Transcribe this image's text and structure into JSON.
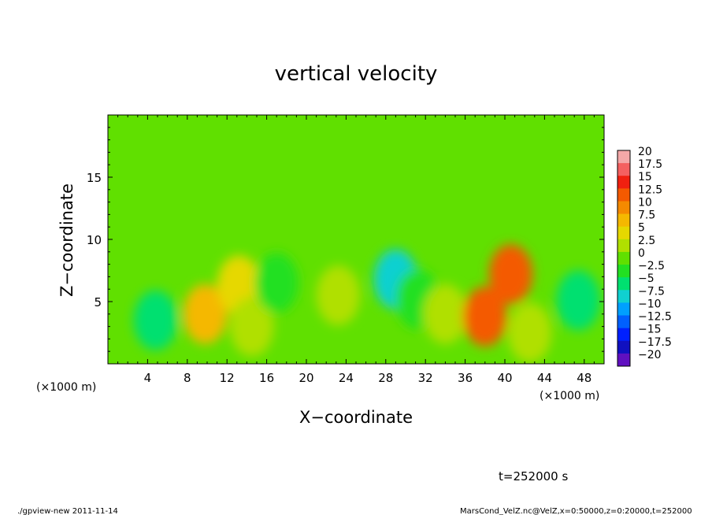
{
  "chart_data": {
    "type": "heatmap",
    "title": "vertical velocity",
    "xlabel": "X−coordinate",
    "ylabel": "Z−coordinate",
    "x_unit_left": "(×1000 m)",
    "x_unit_right": "(×1000 m)",
    "xlim": [
      0,
      50
    ],
    "ylim": [
      0,
      20
    ],
    "x_ticks": [
      "4",
      "8",
      "12",
      "16",
      "20",
      "24",
      "28",
      "32",
      "36",
      "40",
      "44",
      "48"
    ],
    "x_tick_values": [
      4,
      8,
      12,
      16,
      20,
      24,
      28,
      32,
      36,
      40,
      44,
      48
    ],
    "y_ticks": [
      "5",
      "10",
      "15"
    ],
    "y_tick_values": [
      5,
      10,
      15
    ],
    "colorbar": {
      "levels": [
        "20",
        "17.5",
        "15",
        "12.5",
        "10",
        "7.5",
        "5",
        "2.5",
        "0",
        "−2.5",
        "−5",
        "−7.5",
        "−10",
        "−12.5",
        "−15",
        "−17.5",
        "−20"
      ],
      "level_values": [
        20,
        17.5,
        15,
        12.5,
        10,
        7.5,
        5,
        2.5,
        0,
        -2.5,
        -5,
        -7.5,
        -10,
        -12.5,
        -15,
        -17.5,
        -20
      ],
      "colors": [
        "#f4a8a8",
        "#f46060",
        "#f02010",
        "#f45a00",
        "#f58a00",
        "#f5b800",
        "#e6d800",
        "#b0e000",
        "#60e000",
        "#22e022",
        "#00e070",
        "#10d0d0",
        "#00a0ff",
        "#0060ff",
        "#0020ff",
        "#1010c0",
        "#6010c0"
      ]
    },
    "background_value": 0,
    "features": [
      {
        "x": 4.8,
        "z": 3.5,
        "value": -6
      },
      {
        "x": 9.8,
        "z": 4.0,
        "value": 7.5
      },
      {
        "x": 13.2,
        "z": 6.3,
        "value": 4
      },
      {
        "x": 14.5,
        "z": 3.0,
        "value": 3
      },
      {
        "x": 17.0,
        "z": 6.5,
        "value": -3
      },
      {
        "x": 23.2,
        "z": 5.5,
        "value": 3.5
      },
      {
        "x": 29.0,
        "z": 6.8,
        "value": -8
      },
      {
        "x": 31.2,
        "z": 5.2,
        "value": -3.5
      },
      {
        "x": 34.0,
        "z": 4.0,
        "value": 2.5
      },
      {
        "x": 38.0,
        "z": 3.8,
        "value": 12
      },
      {
        "x": 40.6,
        "z": 7.2,
        "value": 13
      },
      {
        "x": 42.5,
        "z": 2.5,
        "value": 2.5
      },
      {
        "x": 47.4,
        "z": 5.1,
        "value": -5
      }
    ]
  },
  "time_label": "t=252000 s",
  "footer_left": "./gpview-new  2011-11-14",
  "footer_right": "MarsCond_VelZ.nc@VelZ,x=0:50000,z=0:20000,t=252000"
}
